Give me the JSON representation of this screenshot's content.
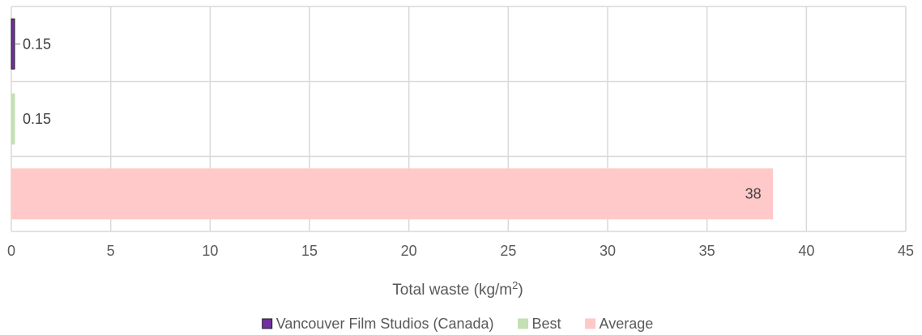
{
  "chart_data": {
    "type": "bar",
    "orientation": "horizontal",
    "categories": [
      "Vancouver Film Studios (Canada)",
      "Best",
      "Average"
    ],
    "values": [
      0.15,
      0.15,
      38.3
    ],
    "data_labels": [
      "0.15",
      "0.15",
      "38"
    ],
    "colors": [
      "#7030a0",
      "#c5e0b4",
      "#ffc9c9"
    ],
    "border_colors": [
      "#1f1f1f",
      "#c5e0b4",
      "#ffc9c9"
    ],
    "xlabel_prefix": "Total waste (kg/m",
    "xlabel_sup": "2",
    "xlabel_suffix": ")",
    "xlim": [
      0,
      45
    ],
    "x_ticks": [
      0,
      5,
      10,
      15,
      20,
      25,
      30,
      35,
      40,
      45
    ],
    "grid": true,
    "legend": {
      "position": "bottom",
      "entries": [
        "Vancouver Film Studios (Canada)",
        "Best",
        "Average"
      ]
    }
  }
}
